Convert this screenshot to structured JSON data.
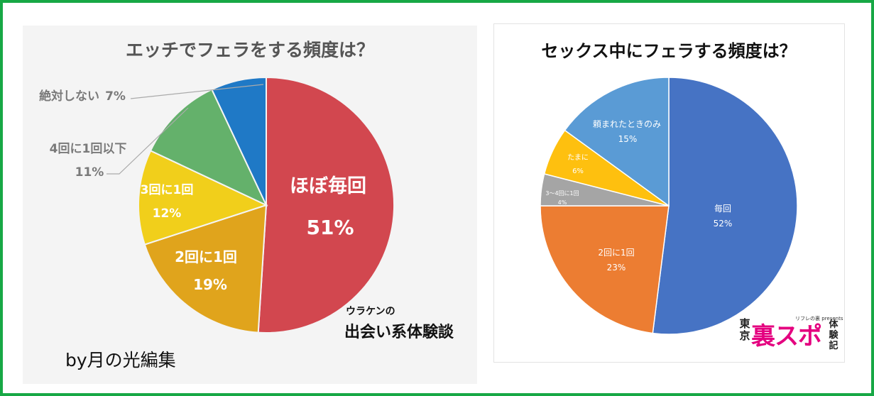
{
  "chart_data": [
    {
      "type": "pie",
      "title": "エッチでフェラをする頻度は？",
      "categories": [
        "ほぼ毎回",
        "2回に1回",
        "3回に1回",
        "4回に1回以下",
        "絶対しない"
      ],
      "values": [
        51,
        19,
        12,
        11,
        7
      ],
      "labels": [
        {
          "name": "ほぼ毎回",
          "pct": "51%"
        },
        {
          "name": "2回に1回",
          "pct": "19%"
        },
        {
          "name": "3回に1回",
          "pct": "12%"
        },
        {
          "name": "4回に1回以下",
          "pct": "11%"
        },
        {
          "name": "絶対しない",
          "pct": "7%"
        }
      ],
      "colors": [
        "#d2474f",
        "#e0a41c",
        "#f1cf1b",
        "#64b16b",
        "#1f79c6"
      ],
      "legend": "none",
      "watermark": {
        "line1": "ウラケンの",
        "line2": "出会い系体験談"
      }
    },
    {
      "type": "pie",
      "title": "セックス中にフェラする頻度は？",
      "categories": [
        "毎回",
        "2回に1回",
        "3〜4回に1回",
        "たまに",
        "頼まれたときのみ"
      ],
      "values": [
        52,
        23,
        4,
        6,
        15
      ],
      "labels": [
        {
          "name": "毎回",
          "pct": "52%"
        },
        {
          "name": "2回に1回",
          "pct": "23%"
        },
        {
          "name": "3〜4回に1回",
          "pct": "4%"
        },
        {
          "name": "たまに",
          "pct": "6%"
        },
        {
          "name": "頼まれたときのみ",
          "pct": "15%"
        }
      ],
      "colors": [
        "#4673c4",
        "#ec7d32",
        "#a5a5a5",
        "#fec00f",
        "#5a9bd5"
      ],
      "legend": "none"
    }
  ],
  "credit": "by月の光編集",
  "logo": {
    "small": "リフレの裏 presents",
    "tokyo": "東京",
    "main": "裏スポ",
    "side": "体験記"
  }
}
